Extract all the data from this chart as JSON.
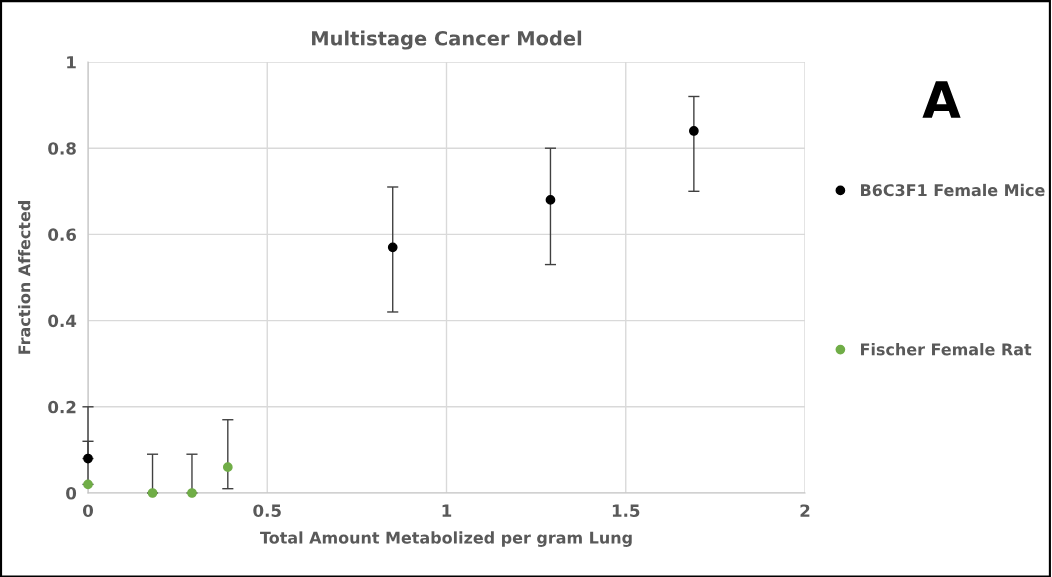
{
  "chart_data": {
    "type": "scatter",
    "title": "Multistage Cancer Model",
    "xlabel": "Total Amount Metabolized per gram Lung",
    "ylabel": "Fraction Affected",
    "annotations": [
      "A"
    ],
    "series": [
      {
        "name": "B6C3F1 Female Mice",
        "color": "#000000",
        "x": [
          0,
          0.85,
          1.29,
          1.69
        ],
        "values": [
          0.08,
          0.57,
          0.68,
          0.84
        ],
        "errors": [
          [
            0.08,
            0.2
          ],
          [
            0.42,
            0.71
          ],
          [
            0.53,
            0.8
          ],
          [
            0.7,
            0.92
          ]
        ]
      },
      {
        "name": "Fischer Female Rat",
        "color": "#70ad47",
        "x": [
          0,
          0.18,
          0.29,
          0.39
        ],
        "values": [
          0.02,
          0,
          0,
          0.06
        ],
        "errors": [
          [
            0.02,
            0.12
          ],
          [
            0,
            0.09
          ],
          [
            0,
            0.09
          ],
          [
            0.01,
            0.17
          ]
        ]
      }
    ],
    "xlim": [
      0,
      2
    ],
    "xticks": [
      0,
      0.5,
      1,
      1.5,
      2
    ],
    "ylim": [
      0,
      1
    ],
    "yticks": [
      0,
      0.2,
      0.4,
      0.6,
      0.8,
      1
    ],
    "grid": true,
    "legend": "right",
    "marker": "circle"
  }
}
